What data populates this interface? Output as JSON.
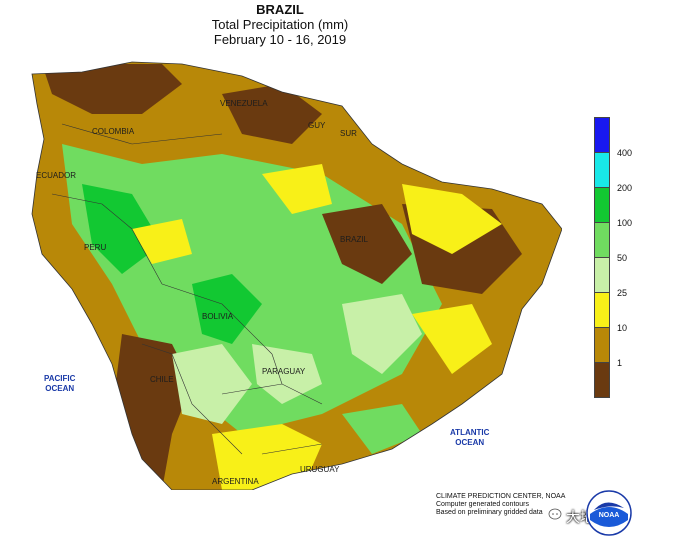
{
  "title": {
    "line1": "BRAZIL",
    "line2": "Total Precipitation (mm)",
    "line3": "February 10 - 16, 2019"
  },
  "legend": {
    "items": [
      {
        "label": "400",
        "color": "#1818f0"
      },
      {
        "label": "200",
        "color": "#18e8e8"
      },
      {
        "label": "100",
        "color": "#12c832"
      },
      {
        "label": "50",
        "color": "#70dc60"
      },
      {
        "label": "25",
        "color": "#c8f0a8"
      },
      {
        "label": "10",
        "color": "#f8f018"
      },
      {
        "label": "1",
        "color": "#b88808"
      },
      {
        "label": "",
        "color": "#6a3a10"
      }
    ]
  },
  "map": {
    "oceans": {
      "pacific": [
        "PACIFIC",
        "OCEAN"
      ],
      "atlantic": [
        "ATLANTIC",
        "OCEAN"
      ]
    },
    "countries": [
      "VENEZUELA",
      "COLOMBIA",
      "ECUADOR",
      "PERU",
      "BRAZIL",
      "BOLIVIA",
      "PARAGUAY",
      "CHILE",
      "ARGENTINA",
      "URUGUAY",
      "GUY",
      "SUR"
    ]
  },
  "footer": {
    "line1": "CLIMATE PREDICTION CENTER, NOAA",
    "line2": "Computer generated contours",
    "line3": "Based on preliminary gridded data"
  },
  "logo": {
    "text": "NOAA"
  },
  "watermark": {
    "text": "大地研究"
  }
}
